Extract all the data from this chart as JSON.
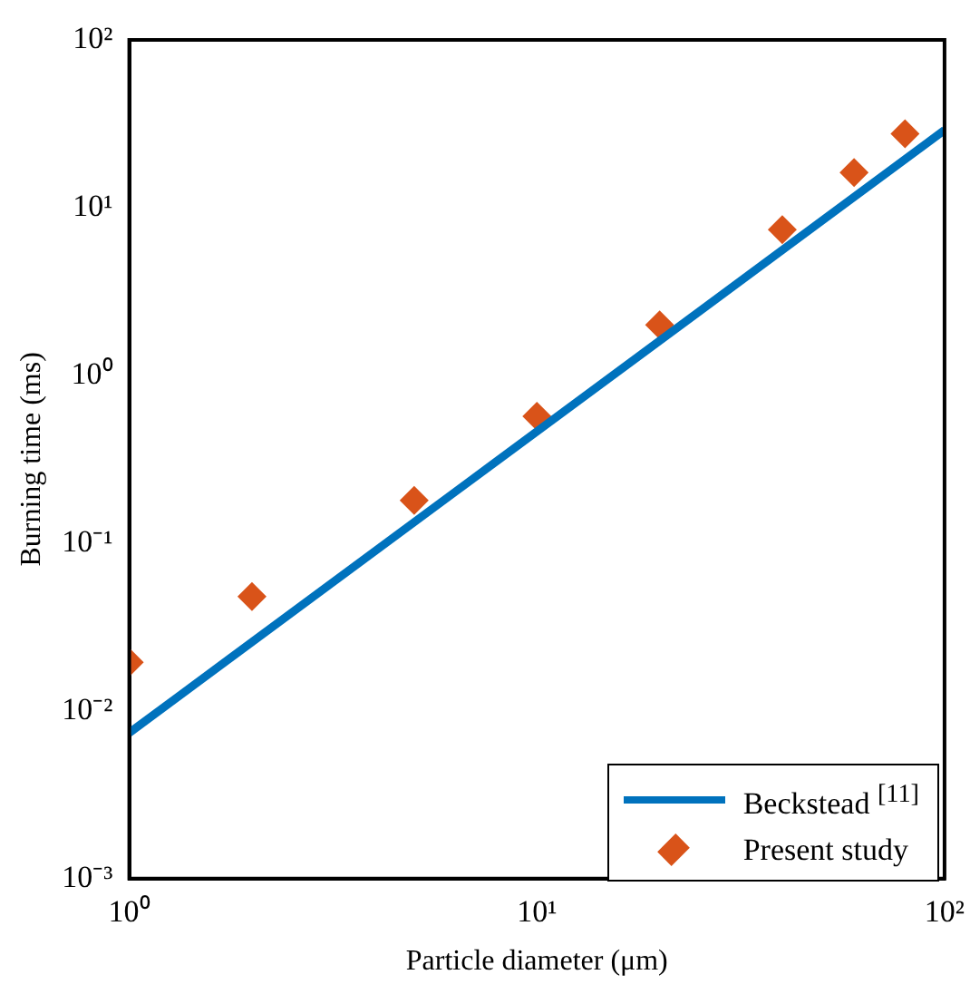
{
  "chart_data": {
    "type": "scatter",
    "xlabel": "Particle diameter (μm)",
    "ylabel": "Burning time (ms)",
    "log": "xy",
    "grid": false,
    "legend": "bottom right",
    "marker": "diamond",
    "xlim": [
      1,
      100
    ],
    "xticks": [
      {
        "value": 1,
        "label": "10⁰"
      },
      {
        "value": 10,
        "label": "10¹"
      },
      {
        "value": 100,
        "label": "10²"
      }
    ],
    "ylim": [
      0.001,
      100
    ],
    "yticks": [
      {
        "value": 0.001,
        "label": "10⁻³"
      },
      {
        "value": 0.01,
        "label": "10⁻²"
      },
      {
        "value": 0.1,
        "label": "10⁻¹"
      },
      {
        "value": 1,
        "label": "10⁰"
      },
      {
        "value": 10,
        "label": "10¹"
      },
      {
        "value": 100,
        "label": "10²"
      }
    ],
    "series": [
      {
        "name": "Beckstead $^{[11]}$",
        "type": "line",
        "color": "#0072bd",
        "line_style": "solid",
        "marker": "none",
        "x": [
          1,
          100
        ],
        "values": [
          0.0074,
          29
        ]
      },
      {
        "name": "Present study",
        "color": "#d95319",
        "x": [
          1,
          2,
          5,
          10,
          20,
          40,
          60,
          80
        ],
        "values": [
          0.0195,
          0.048,
          0.18,
          0.57,
          2.0,
          7.4,
          16.2,
          27.6
        ]
      }
    ]
  }
}
